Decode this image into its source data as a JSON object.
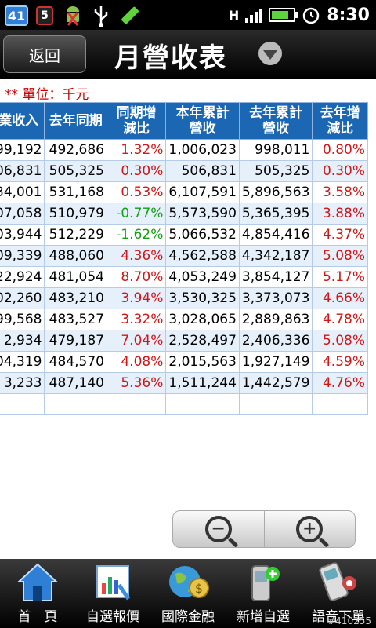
{
  "statusbar": {
    "badge_count": "41",
    "badge_small": "5",
    "network": "H",
    "time": "8:30"
  },
  "header": {
    "back_label": "返回",
    "title": "月營收表"
  },
  "unit_label": "** 單位：千元",
  "table": {
    "headers": [
      "業收入",
      "去年同期",
      "同期增\n減比",
      "本年累計\n營收",
      "去年累計\n營收",
      "去年增\n減比"
    ],
    "rows": [
      [
        "99,192",
        "492,686",
        "1.32%",
        "1,006,023",
        "998,011",
        "0.80%"
      ],
      [
        "06,831",
        "505,325",
        "0.30%",
        "506,831",
        "505,325",
        "0.30%"
      ],
      [
        "34,001",
        "531,168",
        "0.53%",
        "6,107,591",
        "5,896,563",
        "3.58%"
      ],
      [
        "07,058",
        "510,979",
        "-0.77%",
        "5,573,590",
        "5,365,395",
        "3.88%"
      ],
      [
        "03,944",
        "512,229",
        "-1.62%",
        "5,066,532",
        "4,854,416",
        "4.37%"
      ],
      [
        "09,339",
        "488,060",
        "4.36%",
        "4,562,588",
        "4,342,187",
        "5.08%"
      ],
      [
        "22,924",
        "481,054",
        "8.70%",
        "4,053,249",
        "3,854,127",
        "5.17%"
      ],
      [
        "02,260",
        "483,210",
        "3.94%",
        "3,530,325",
        "3,373,073",
        "4.66%"
      ],
      [
        "99,568",
        "483,527",
        "3.32%",
        "3,028,065",
        "2,889,863",
        "4.78%"
      ],
      [
        "2,934",
        "479,187",
        "7.04%",
        "2,528,497",
        "2,406,336",
        "5.08%"
      ],
      [
        "04,319",
        "484,570",
        "4.08%",
        "2,015,563",
        "1,927,149",
        "4.59%"
      ],
      [
        "3,233",
        "487,140",
        "5.36%",
        "1,511,244",
        "1,442,579",
        "4.76%"
      ],
      [
        "",
        "",
        "",
        "",
        "",
        ""
      ]
    ]
  },
  "nav": [
    {
      "label": "首　頁",
      "icon": "home-icon"
    },
    {
      "label": "自選報價",
      "icon": "watchlist-chart-icon"
    },
    {
      "label": "國際金融",
      "icon": "globe-money-icon"
    },
    {
      "label": "新增自選",
      "icon": "add-phone-icon"
    },
    {
      "label": "語音下單",
      "icon": "voice-phone-icon"
    }
  ],
  "watermark": "#410255",
  "colors": {
    "header_blue": "#1b67b3",
    "positive_red": "#d01616",
    "negative_green": "#11a011",
    "row_alt": "#e6f0fb"
  }
}
